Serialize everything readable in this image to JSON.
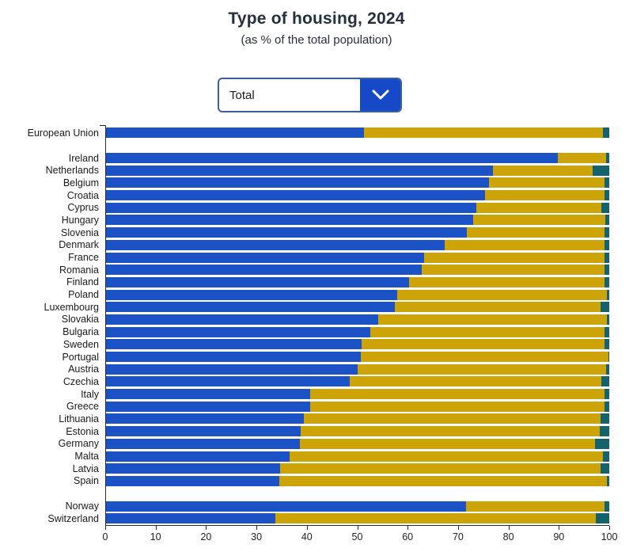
{
  "header": {
    "title": "Type of housing, 2024",
    "subtitle": "(as % of the total population)"
  },
  "dropdown": {
    "value": "Total",
    "chevron_icon": "chevron-down"
  },
  "colors": {
    "bar_blue": "#1b52c5",
    "bar_gold": "#cda407",
    "bar_teal": "#14636c",
    "dropdown_accent": "#1649c8",
    "axis": "#2b2b2b",
    "title_text": "#24303e"
  },
  "chart_data": {
    "type": "bar",
    "orientation": "horizontal",
    "stacked": true,
    "title": "Type of housing, 2024",
    "subtitle": "(as % of the total population)",
    "xlabel": "",
    "ylabel": "",
    "xlim": [
      0,
      100
    ],
    "x_ticks": [
      0,
      10,
      20,
      30,
      40,
      50,
      60,
      70,
      80,
      90,
      100
    ],
    "legend": "none (segments shown by color: blue, gold, teal; each row sums to 100%)",
    "series_colors": {
      "blue": "#1b52c5",
      "gold": "#cda407",
      "teal": "#14636c"
    },
    "rows": [
      {
        "label": "European Union",
        "blue": 51.3,
        "gold": 47.5,
        "teal": 1.2,
        "gap_before": false
      },
      {
        "label": "Ireland",
        "blue": 89.8,
        "gold": 9.5,
        "teal": 0.7,
        "gap_before": true
      },
      {
        "label": "Netherlands",
        "blue": 76.9,
        "gold": 19.8,
        "teal": 3.3,
        "gap_before": false
      },
      {
        "label": "Belgium",
        "blue": 76.2,
        "gold": 22.8,
        "teal": 1.0,
        "gap_before": false
      },
      {
        "label": "Croatia",
        "blue": 75.3,
        "gold": 23.7,
        "teal": 1.0,
        "gap_before": false
      },
      {
        "label": "Cyprus",
        "blue": 73.6,
        "gold": 24.9,
        "teal": 1.5,
        "gap_before": false
      },
      {
        "label": "Hungary",
        "blue": 73.0,
        "gold": 26.2,
        "teal": 0.8,
        "gap_before": false
      },
      {
        "label": "Slovenia",
        "blue": 71.8,
        "gold": 27.2,
        "teal": 1.0,
        "gap_before": false
      },
      {
        "label": "Denmark",
        "blue": 67.3,
        "gold": 31.7,
        "teal": 1.0,
        "gap_before": false
      },
      {
        "label": "France",
        "blue": 63.3,
        "gold": 35.7,
        "teal": 1.0,
        "gap_before": false
      },
      {
        "label": "Romania",
        "blue": 62.8,
        "gold": 36.2,
        "teal": 1.0,
        "gap_before": false
      },
      {
        "label": "Finland",
        "blue": 60.3,
        "gold": 38.7,
        "teal": 1.0,
        "gap_before": false
      },
      {
        "label": "Poland",
        "blue": 57.9,
        "gold": 41.6,
        "teal": 0.5,
        "gap_before": false
      },
      {
        "label": "Luxembourg",
        "blue": 57.5,
        "gold": 40.8,
        "teal": 1.7,
        "gap_before": false
      },
      {
        "label": "Slovakia",
        "blue": 54.2,
        "gold": 45.3,
        "teal": 0.5,
        "gap_before": false
      },
      {
        "label": "Bulgaria",
        "blue": 52.6,
        "gold": 46.4,
        "teal": 1.0,
        "gap_before": false
      },
      {
        "label": "Sweden",
        "blue": 50.9,
        "gold": 48.1,
        "teal": 1.0,
        "gap_before": false
      },
      {
        "label": "Portugal",
        "blue": 50.7,
        "gold": 49.1,
        "teal": 0.2,
        "gap_before": false
      },
      {
        "label": "Austria",
        "blue": 50.1,
        "gold": 49.2,
        "teal": 0.7,
        "gap_before": false
      },
      {
        "label": "Czechia",
        "blue": 48.5,
        "gold": 50.0,
        "teal": 1.5,
        "gap_before": false
      },
      {
        "label": "Italy",
        "blue": 40.7,
        "gold": 58.3,
        "teal": 1.0,
        "gap_before": false
      },
      {
        "label": "Greece",
        "blue": 40.6,
        "gold": 58.4,
        "teal": 1.0,
        "gap_before": false
      },
      {
        "label": "Lithuania",
        "blue": 39.4,
        "gold": 58.9,
        "teal": 1.7,
        "gap_before": false
      },
      {
        "label": "Estonia",
        "blue": 38.7,
        "gold": 59.4,
        "teal": 1.9,
        "gap_before": false
      },
      {
        "label": "Germany",
        "blue": 38.6,
        "gold": 58.6,
        "teal": 2.8,
        "gap_before": false
      },
      {
        "label": "Malta",
        "blue": 36.6,
        "gold": 62.1,
        "teal": 1.3,
        "gap_before": false
      },
      {
        "label": "Latvia",
        "blue": 34.7,
        "gold": 63.6,
        "teal": 1.7,
        "gap_before": false
      },
      {
        "label": "Spain",
        "blue": 34.5,
        "gold": 65.0,
        "teal": 0.5,
        "gap_before": false
      },
      {
        "label": "Norway",
        "blue": 71.6,
        "gold": 27.4,
        "teal": 1.0,
        "gap_before": true
      },
      {
        "label": "Switzerland",
        "blue": 33.8,
        "gold": 63.6,
        "teal": 2.6,
        "gap_before": false
      }
    ]
  }
}
